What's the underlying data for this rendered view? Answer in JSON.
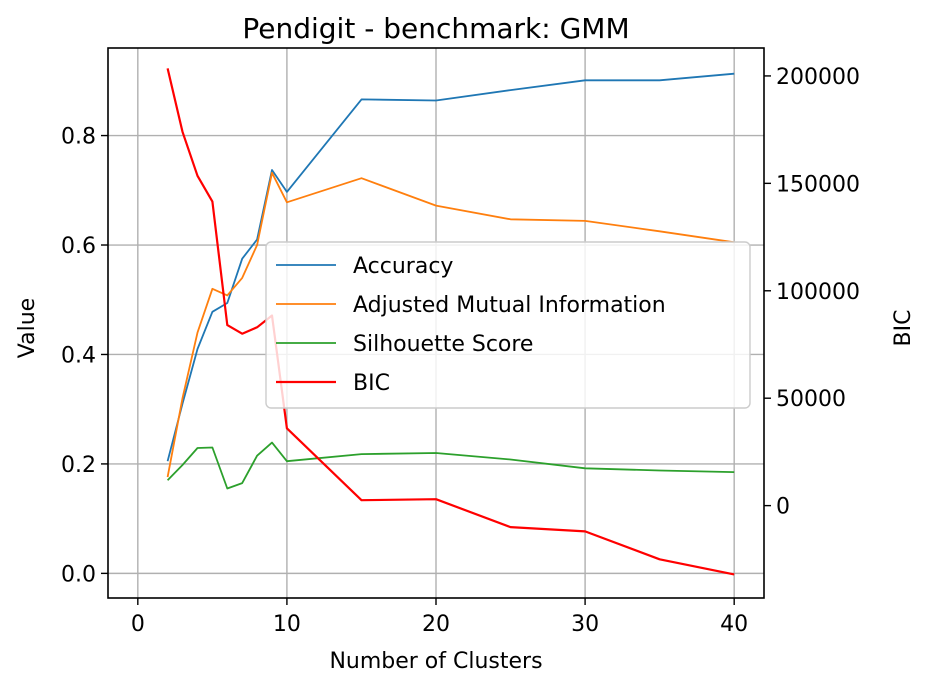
{
  "chart_data": {
    "type": "line",
    "title": "Pendigit - benchmark: GMM",
    "xlabel": "Number of Clusters",
    "ylabel": "Value",
    "y2label": "BIC",
    "xlim": [
      -2,
      42
    ],
    "ylim": [
      -0.045,
      0.96
    ],
    "y2lim": [
      -43000,
      213000
    ],
    "x_ticks": [
      0,
      10,
      20,
      30,
      40
    ],
    "y_ticks": [
      0.0,
      0.2,
      0.4,
      0.6,
      0.8
    ],
    "y_tick_labels": [
      "0.0",
      "0.2",
      "0.4",
      "0.6",
      "0.8"
    ],
    "y2_ticks": [
      0,
      50000,
      100000,
      150000,
      200000
    ],
    "grid": true,
    "legend_position": "center-right",
    "series": [
      {
        "name": "Accuracy",
        "axis": "left",
        "color": "#1f77b4",
        "x": [
          2,
          3,
          4,
          5,
          6,
          7,
          8,
          9,
          10,
          15,
          20,
          25,
          30,
          35,
          40
        ],
        "y": [
          0.205,
          0.31,
          0.41,
          0.478,
          0.494,
          0.575,
          0.61,
          0.737,
          0.697,
          0.866,
          0.864,
          0.883,
          0.901,
          0.901,
          0.913
        ]
      },
      {
        "name": "Adjusted Mutual Information",
        "axis": "left",
        "color": "#ff7f0e",
        "x": [
          2,
          3,
          4,
          5,
          6,
          7,
          8,
          9,
          10,
          15,
          20,
          25,
          30,
          35,
          40
        ],
        "y": [
          0.176,
          0.32,
          0.44,
          0.52,
          0.508,
          0.54,
          0.6,
          0.732,
          0.678,
          0.722,
          0.672,
          0.647,
          0.644,
          0.625,
          0.605
        ]
      },
      {
        "name": "Silhouette Score",
        "axis": "left",
        "color": "#2ca02c",
        "x": [
          2,
          3,
          4,
          5,
          6,
          7,
          8,
          9,
          10,
          15,
          20,
          25,
          30,
          35,
          40
        ],
        "y": [
          0.17,
          0.198,
          0.229,
          0.23,
          0.155,
          0.165,
          0.215,
          0.239,
          0.205,
          0.218,
          0.22,
          0.208,
          0.192,
          0.188,
          0.185
        ]
      },
      {
        "name": "BIC",
        "axis": "right",
        "color": "#ff0000",
        "x": [
          2,
          3,
          4,
          5,
          6,
          7,
          8,
          9,
          10,
          15,
          20,
          25,
          30,
          35,
          40
        ],
        "y": [
          203500,
          174000,
          153500,
          141500,
          84000,
          80000,
          83000,
          88500,
          36000,
          2500,
          3000,
          -10000,
          -12000,
          -25000,
          -32000
        ]
      }
    ]
  }
}
